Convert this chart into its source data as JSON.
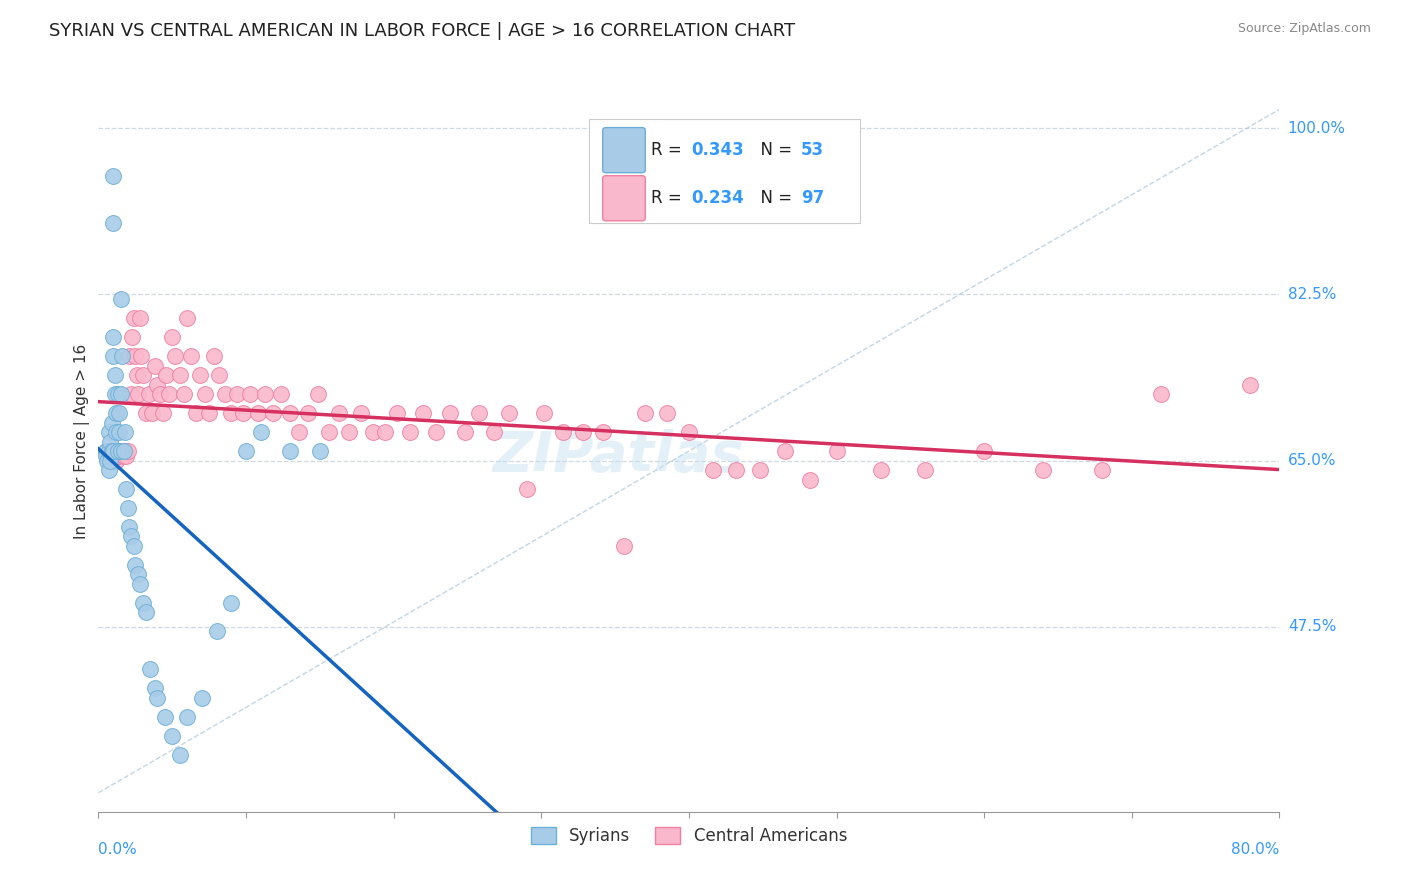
{
  "title": "SYRIAN VS CENTRAL AMERICAN IN LABOR FORCE | AGE > 16 CORRELATION CHART",
  "source": "Source: ZipAtlas.com",
  "ylabel": "In Labor Force | Age > 16",
  "ytick_vals": [
    1.0,
    0.825,
    0.65,
    0.475
  ],
  "ytick_labels": [
    "100.0%",
    "82.5%",
    "65.0%",
    "47.5%"
  ],
  "xmin": 0.0,
  "xmax": 0.8,
  "ymin": 0.28,
  "ymax": 1.06,
  "syrian_R": 0.343,
  "syrian_N": 53,
  "central_R": 0.234,
  "central_N": 97,
  "syrian_color": "#a8cce8",
  "syrian_edge": "#6baed6",
  "central_color": "#f9b8cb",
  "central_edge": "#f07fa0",
  "title_fontsize": 13,
  "axis_label_color": "#3399ff",
  "watermark": "ZIPatlas",
  "syrian_trend_color": "#1565c0",
  "central_trend_color": "#d63060",
  "ref_line_color": "#b0cce0",
  "grid_color": "#d0d8e0",
  "syrian_x": [
    0.005,
    0.005,
    0.006,
    0.007,
    0.007,
    0.007,
    0.008,
    0.008,
    0.009,
    0.009,
    0.01,
    0.01,
    0.01,
    0.01,
    0.01,
    0.011,
    0.011,
    0.012,
    0.012,
    0.013,
    0.013,
    0.014,
    0.014,
    0.015,
    0.015,
    0.015,
    0.016,
    0.017,
    0.018,
    0.019,
    0.02,
    0.021,
    0.022,
    0.024,
    0.025,
    0.027,
    0.028,
    0.03,
    0.032,
    0.035,
    0.038,
    0.04,
    0.045,
    0.05,
    0.055,
    0.06,
    0.07,
    0.08,
    0.09,
    0.1,
    0.11,
    0.13,
    0.15
  ],
  "syrian_y": [
    0.66,
    0.655,
    0.65,
    0.68,
    0.66,
    0.64,
    0.67,
    0.65,
    0.69,
    0.66,
    0.95,
    0.9,
    0.78,
    0.76,
    0.66,
    0.74,
    0.72,
    0.7,
    0.68,
    0.72,
    0.66,
    0.7,
    0.68,
    0.82,
    0.72,
    0.66,
    0.76,
    0.66,
    0.68,
    0.62,
    0.6,
    0.58,
    0.57,
    0.56,
    0.54,
    0.53,
    0.52,
    0.5,
    0.49,
    0.43,
    0.41,
    0.4,
    0.38,
    0.36,
    0.34,
    0.38,
    0.4,
    0.47,
    0.5,
    0.66,
    0.68,
    0.66,
    0.66
  ],
  "central_x": [
    0.005,
    0.006,
    0.007,
    0.008,
    0.009,
    0.01,
    0.011,
    0.012,
    0.013,
    0.014,
    0.015,
    0.016,
    0.017,
    0.018,
    0.019,
    0.02,
    0.021,
    0.022,
    0.023,
    0.024,
    0.025,
    0.026,
    0.027,
    0.028,
    0.029,
    0.03,
    0.032,
    0.034,
    0.036,
    0.038,
    0.04,
    0.042,
    0.044,
    0.046,
    0.048,
    0.05,
    0.052,
    0.055,
    0.058,
    0.06,
    0.063,
    0.066,
    0.069,
    0.072,
    0.075,
    0.078,
    0.082,
    0.086,
    0.09,
    0.094,
    0.098,
    0.103,
    0.108,
    0.113,
    0.118,
    0.124,
    0.13,
    0.136,
    0.142,
    0.149,
    0.156,
    0.163,
    0.17,
    0.178,
    0.186,
    0.194,
    0.202,
    0.211,
    0.22,
    0.229,
    0.238,
    0.248,
    0.258,
    0.268,
    0.278,
    0.29,
    0.302,
    0.315,
    0.328,
    0.342,
    0.356,
    0.37,
    0.385,
    0.4,
    0.416,
    0.432,
    0.448,
    0.465,
    0.482,
    0.5,
    0.53,
    0.56,
    0.6,
    0.64,
    0.68,
    0.72,
    0.78
  ],
  "central_y": [
    0.66,
    0.66,
    0.655,
    0.65,
    0.66,
    0.66,
    0.66,
    0.65,
    0.655,
    0.66,
    0.66,
    0.66,
    0.655,
    0.66,
    0.655,
    0.66,
    0.76,
    0.72,
    0.78,
    0.8,
    0.76,
    0.74,
    0.72,
    0.8,
    0.76,
    0.74,
    0.7,
    0.72,
    0.7,
    0.75,
    0.73,
    0.72,
    0.7,
    0.74,
    0.72,
    0.78,
    0.76,
    0.74,
    0.72,
    0.8,
    0.76,
    0.7,
    0.74,
    0.72,
    0.7,
    0.76,
    0.74,
    0.72,
    0.7,
    0.72,
    0.7,
    0.72,
    0.7,
    0.72,
    0.7,
    0.72,
    0.7,
    0.68,
    0.7,
    0.72,
    0.68,
    0.7,
    0.68,
    0.7,
    0.68,
    0.68,
    0.7,
    0.68,
    0.7,
    0.68,
    0.7,
    0.68,
    0.7,
    0.68,
    0.7,
    0.62,
    0.7,
    0.68,
    0.68,
    0.68,
    0.56,
    0.7,
    0.7,
    0.68,
    0.64,
    0.64,
    0.64,
    0.66,
    0.63,
    0.66,
    0.64,
    0.64,
    0.66,
    0.64,
    0.64,
    0.72,
    0.73
  ]
}
